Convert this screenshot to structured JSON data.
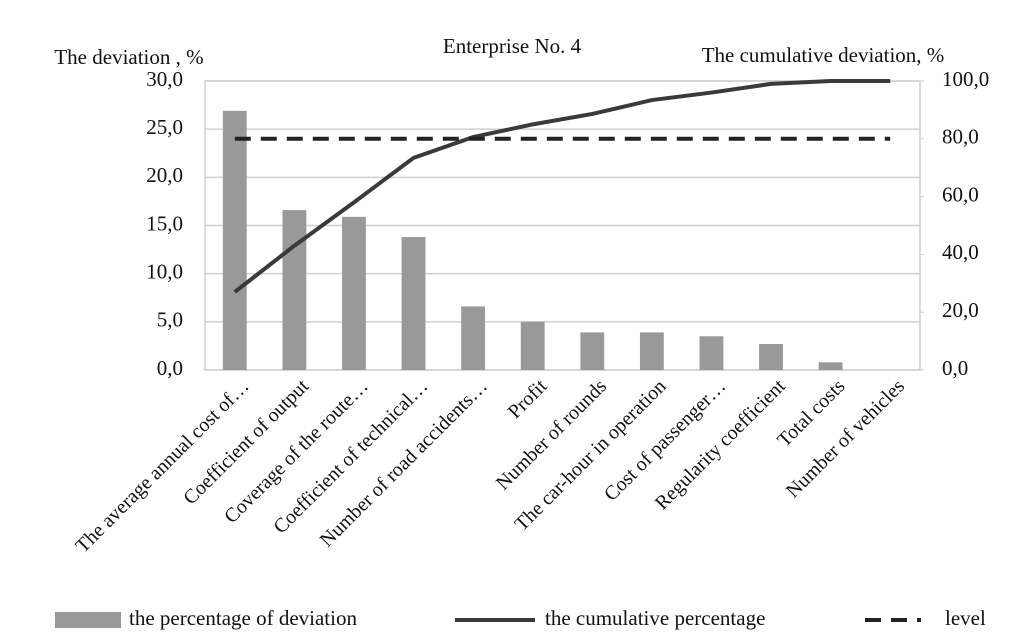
{
  "chart_data": {
    "type": "bar",
    "title": "Enterprise No. 4",
    "y_label": "The deviation , %",
    "y2_label": "The cumulative deviation, %",
    "categories": [
      "The average annual cost of…",
      "Coefficient of output",
      "Coverage of the route…",
      "Coefficient of technical…",
      "Number of road accidents…",
      "Profit",
      "Number of rounds",
      "The car-hour in operation",
      "Cost of passenger…",
      "Regularity coefficient",
      "Total costs",
      "Number of vehicles"
    ],
    "series": [
      {
        "name": "the percentage of deviation",
        "type": "bar",
        "color": "#999999",
        "values": [
          26.9,
          16.6,
          15.9,
          13.8,
          6.6,
          5.0,
          3.9,
          3.9,
          3.5,
          2.7,
          0.8,
          0.0
        ]
      },
      {
        "name": "the cumulative percentage",
        "type": "line",
        "color": "#3a3a3a",
        "axis": "y2",
        "values": [
          27.0,
          43.0,
          58.0,
          73.4,
          80.6,
          85.0,
          88.6,
          93.4,
          96.0,
          99.0,
          100.0,
          100.0
        ]
      },
      {
        "name": "level",
        "type": "line",
        "dashed": true,
        "color": "#222222",
        "axis": "y2",
        "values": [
          80,
          80,
          80,
          80,
          80,
          80,
          80,
          80,
          80,
          80,
          80,
          80
        ]
      }
    ],
    "ylim": [
      0,
      30
    ],
    "yticks": [
      {
        "value": 0,
        "label": "0,0"
      },
      {
        "value": 5,
        "label": "5,0"
      },
      {
        "value": 10,
        "label": "10,0"
      },
      {
        "value": 15,
        "label": "15,0"
      },
      {
        "value": 20,
        "label": "20,0"
      },
      {
        "value": 25,
        "label": "25,0"
      },
      {
        "value": 30,
        "label": "30,0"
      }
    ],
    "y2lim": [
      0,
      100
    ],
    "y2ticks": [
      {
        "value": 0,
        "label": "0,0"
      },
      {
        "value": 20,
        "label": "20,0"
      },
      {
        "value": 40,
        "label": "40,0"
      },
      {
        "value": 60,
        "label": "60,0"
      },
      {
        "value": 80,
        "label": "80,0"
      },
      {
        "value": 100,
        "label": "100,0"
      }
    ],
    "grid": true,
    "legend": "bottom"
  }
}
